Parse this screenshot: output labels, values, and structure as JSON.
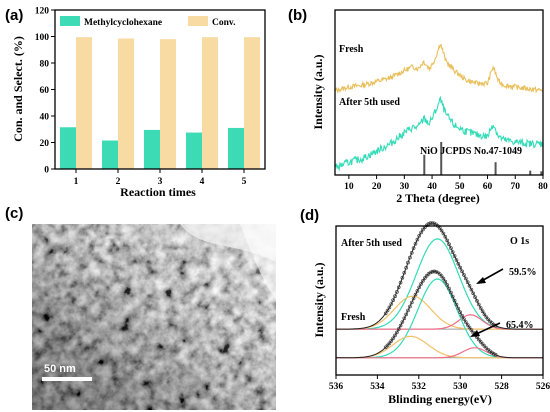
{
  "panels": {
    "a": "(a)",
    "b": "(b)",
    "c": "(c)",
    "d": "(d)"
  },
  "colors": {
    "methyl": "#3ddbb5",
    "conv": "#f7dba2",
    "fresh_curve": "#e9bf5b",
    "used_curve": "#33dbb7",
    "ref_lines": "#555555",
    "xps_peak_main": "#33dbb7",
    "xps_peak_low": "#f3c066",
    "xps_peak_high": "#f06d86",
    "xps_fit": "#222222"
  },
  "chart_data": [
    {
      "id": "a",
      "type": "bar",
      "xlabel": "Reaction times",
      "ylabel": "Con. and Select. (%)",
      "categories": [
        "1",
        "2",
        "3",
        "4",
        "5"
      ],
      "series": [
        {
          "name": "Methylcyclohexane",
          "values": [
            31.5,
            21.5,
            29.5,
            27.5,
            31
          ]
        },
        {
          "name": "Conv.",
          "values": [
            99.5,
            98.5,
            98,
            99.5,
            99.5
          ]
        }
      ],
      "ylim": [
        0,
        120
      ],
      "yticks": [
        "0",
        "20",
        "40",
        "60",
        "80",
        "100",
        "120"
      ],
      "legend": "top"
    },
    {
      "id": "b",
      "type": "line",
      "xlabel": "2 Theta (degree)",
      "ylabel": "Intensity (a.u.)",
      "xlim": [
        5,
        80
      ],
      "xticks": [
        "10",
        "20",
        "30",
        "40",
        "50",
        "60",
        "70",
        "80"
      ],
      "labels": {
        "fresh": "Fresh",
        "used": "After 5th used",
        "ref": "NiO JCPDS No.47-1049"
      },
      "series": [
        {
          "curve": "fresh",
          "x": [
            5,
            10,
            15,
            20,
            25,
            30,
            33,
            35,
            37,
            39,
            41,
            43,
            45,
            48,
            52,
            56,
            60,
            62,
            64,
            66,
            70,
            75,
            80
          ],
          "y": [
            2.3,
            2.4,
            2.45,
            2.55,
            2.65,
            2.85,
            2.95,
            2.9,
            3.1,
            2.9,
            3.15,
            3.6,
            3.1,
            2.85,
            2.6,
            2.5,
            2.5,
            2.95,
            2.55,
            2.45,
            2.4,
            2.35,
            2.3
          ]
        },
        {
          "curve": "used",
          "x": [
            5,
            10,
            15,
            20,
            25,
            30,
            33,
            35,
            37,
            39,
            41,
            43,
            45,
            48,
            52,
            56,
            60,
            62,
            64,
            66,
            70,
            75,
            80
          ],
          "y": [
            0.2,
            0.35,
            0.45,
            0.65,
            0.85,
            1.15,
            1.3,
            1.3,
            1.55,
            1.4,
            1.7,
            2.05,
            1.65,
            1.35,
            1.2,
            1.1,
            1.05,
            1.4,
            1.05,
            0.95,
            0.9,
            0.85,
            0.85
          ]
        }
      ],
      "reference_peaks": [
        {
          "x": 37.2,
          "h": 0.55
        },
        {
          "x": 43.3,
          "h": 0.9
        },
        {
          "x": 62.9,
          "h": 0.35
        },
        {
          "x": 75.4,
          "h": 0.12
        },
        {
          "x": 79.4,
          "h": 0.1
        }
      ]
    },
    {
      "id": "d",
      "type": "line",
      "xlabel": "Blinding energy(eV)",
      "ylabel": "Intensity (a.u.)",
      "xlim": [
        536,
        526
      ],
      "xticks": [
        "536",
        "534",
        "532",
        "530",
        "528",
        "526"
      ],
      "labels": {
        "title": "O 1s",
        "used": "After 5th used",
        "fresh": "Fresh",
        "used_pct": "59.5%",
        "fresh_pct": "65.4%"
      },
      "spectra": [
        {
          "sample": "used",
          "baseline": 1.0,
          "peaks": [
            {
              "center": 531.1,
              "height": 3.15,
              "width": 1.45,
              "component": "main"
            },
            {
              "center": 532.3,
              "height": 1.15,
              "width": 1.25,
              "component": "low"
            },
            {
              "center": 529.5,
              "height": 0.5,
              "width": 0.8,
              "component": "high"
            }
          ]
        },
        {
          "sample": "fresh",
          "baseline": 0,
          "peaks": [
            {
              "center": 531.1,
              "height": 2.75,
              "width": 1.35,
              "component": "main"
            },
            {
              "center": 532.4,
              "height": 0.75,
              "width": 1.2,
              "component": "low"
            },
            {
              "center": 529.3,
              "height": 0.35,
              "width": 0.8,
              "component": "high"
            }
          ]
        }
      ],
      "scale": {
        "used": 0.19,
        "fresh": 0.19
      }
    }
  ],
  "tem": {
    "scale_label": "50 nm"
  }
}
